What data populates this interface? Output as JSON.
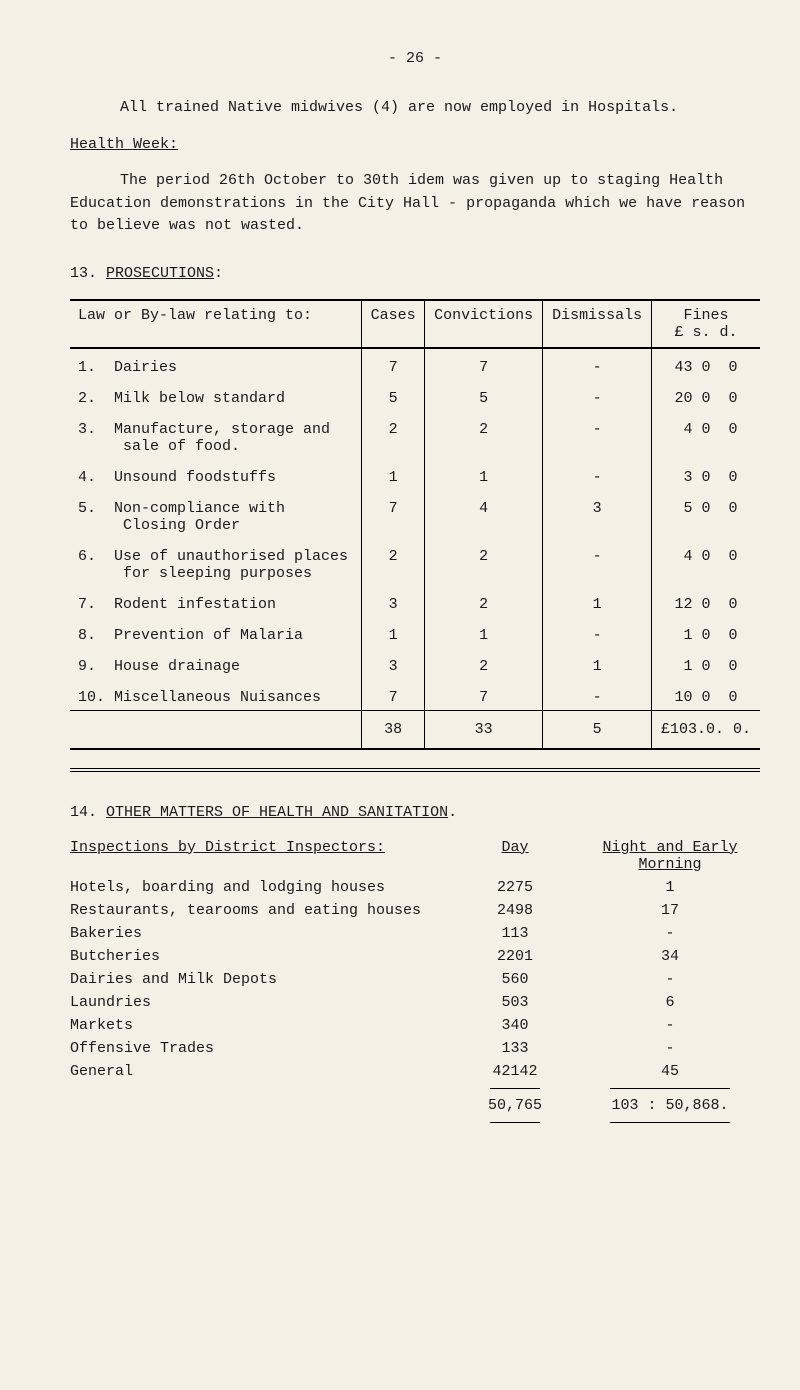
{
  "page_number_text": "- 26 -",
  "intro_line": "All trained Native midwives (4) are now employed in Hospitals.",
  "health_week_label": "Health Week:",
  "health_week_para": "The period 26th October to 30th idem was given up to staging Health Education demonstrations in the City Hall - propaganda which we have reason to believe was not wasted.",
  "section13_title": "13. PROSECUTIONS:",
  "prosec_headers": {
    "law": "Law or By-law relating to:",
    "cases": "Cases",
    "convictions": "Convictions",
    "dismissals": "Dismissals",
    "fines": "Fines",
    "fines_sub": "£  s. d."
  },
  "prosec_rows": [
    {
      "n": "1.",
      "label": "Dairies",
      "cases": "7",
      "conv": "7",
      "dis": "-",
      "fines": "43 0  0"
    },
    {
      "n": "2.",
      "label": "Milk below standard",
      "cases": "5",
      "conv": "5",
      "dis": "-",
      "fines": "20 0  0"
    },
    {
      "n": "3.",
      "label": "Manufacture, storage and\n     sale of food.",
      "cases": "2",
      "conv": "2",
      "dis": "-",
      "fines": " 4 0  0"
    },
    {
      "n": "4.",
      "label": "Unsound foodstuffs",
      "cases": "1",
      "conv": "1",
      "dis": "-",
      "fines": " 3 0  0"
    },
    {
      "n": "5.",
      "label": "Non-compliance with\n     Closing Order",
      "cases": "7",
      "conv": "4",
      "dis": "3",
      "fines": " 5 0  0"
    },
    {
      "n": "6.",
      "label": "Use of unauthorised places\n     for sleeping purposes",
      "cases": "2",
      "conv": "2",
      "dis": "-",
      "fines": " 4 0  0"
    },
    {
      "n": "7.",
      "label": "Rodent infestation",
      "cases": "3",
      "conv": "2",
      "dis": "1",
      "fines": "12 0  0"
    },
    {
      "n": "8.",
      "label": "Prevention of Malaria",
      "cases": "1",
      "conv": "1",
      "dis": "-",
      "fines": " 1 0  0"
    },
    {
      "n": "9.",
      "label": "House drainage",
      "cases": "3",
      "conv": "2",
      "dis": "1",
      "fines": " 1 0  0"
    },
    {
      "n": "10.",
      "label": "Miscellaneous Nuisances",
      "cases": "7",
      "conv": "7",
      "dis": "-",
      "fines": "10 0  0"
    }
  ],
  "prosec_total": {
    "cases": "38",
    "conv": "33",
    "dis": "5",
    "fines": "£103.0. 0."
  },
  "section14_title": "14. OTHER MATTERS OF HEALTH AND SANITATION.",
  "insp_heading": "Inspections by District Inspectors:",
  "insp_day": "Day",
  "insp_nm_top": "Night and Early",
  "insp_nm_bot": "Morning",
  "insp_rows": [
    {
      "label": "Hotels, boarding and lodging houses",
      "day": "2275",
      "nm": "1"
    },
    {
      "label": "Restaurants, tearooms and eating houses",
      "day": "2498",
      "nm": "17"
    },
    {
      "label": "Bakeries",
      "day": "113",
      "nm": "-"
    },
    {
      "label": "Butcheries",
      "day": "2201",
      "nm": "34"
    },
    {
      "label": "Dairies and Milk Depots",
      "day": "560",
      "nm": "-"
    },
    {
      "label": "Laundries",
      "day": "503",
      "nm": "6"
    },
    {
      "label": "Markets",
      "day": "340",
      "nm": "-"
    },
    {
      "label": "Offensive Trades",
      "day": "133",
      "nm": "-"
    },
    {
      "label": "General",
      "day": "42142",
      "nm": "45"
    }
  ],
  "insp_total": {
    "day": "50,765",
    "nm_full": "103 : 50,868."
  }
}
